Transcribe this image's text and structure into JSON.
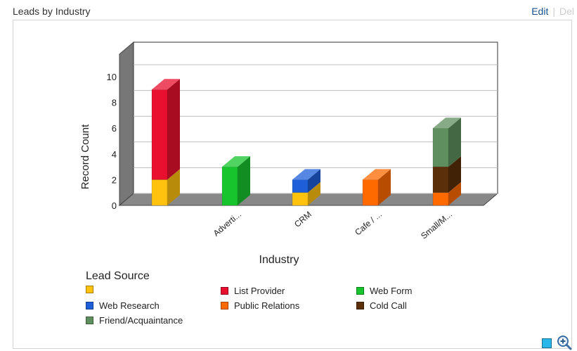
{
  "header": {
    "title": "Leads by Industry",
    "edit_label": "Edit",
    "separator": "|",
    "delete_label": "Del"
  },
  "icons": {
    "footer_square": "square-icon",
    "zoom": "zoom-in-icon"
  },
  "chart_data": {
    "type": "bar",
    "stacked": true,
    "three_d": true,
    "xlabel": "Industry",
    "ylabel": "Record Count",
    "ylim": [
      0,
      10
    ],
    "yticks": [
      0,
      2,
      4,
      6,
      8,
      10
    ],
    "grid": true,
    "categories": [
      "",
      "Adverti...",
      "CRM",
      "Cafe / ...",
      "Small/M..."
    ],
    "legend_title": "Lead Source",
    "legend_position": "bottom",
    "series": [
      {
        "name": "",
        "color": "#FFC20E",
        "values": [
          2,
          0,
          1,
          0,
          0
        ]
      },
      {
        "name": "List Provider",
        "color": "#E8102E",
        "values": [
          7,
          0,
          0,
          0,
          0
        ]
      },
      {
        "name": "Web Form",
        "color": "#17C42E",
        "values": [
          0,
          3,
          0,
          0,
          0
        ]
      },
      {
        "name": "Web Research",
        "color": "#1E5FD9",
        "values": [
          0,
          0,
          1,
          0,
          0
        ]
      },
      {
        "name": "Public Relations",
        "color": "#FF6A00",
        "values": [
          0,
          0,
          0,
          2,
          1
        ]
      },
      {
        "name": "Cold Call",
        "color": "#5A2F0A",
        "values": [
          0,
          0,
          0,
          0,
          2
        ]
      },
      {
        "name": "Friend/Acquaintance",
        "color": "#5F8F5F",
        "values": [
          0,
          0,
          0,
          0,
          3
        ]
      }
    ]
  }
}
